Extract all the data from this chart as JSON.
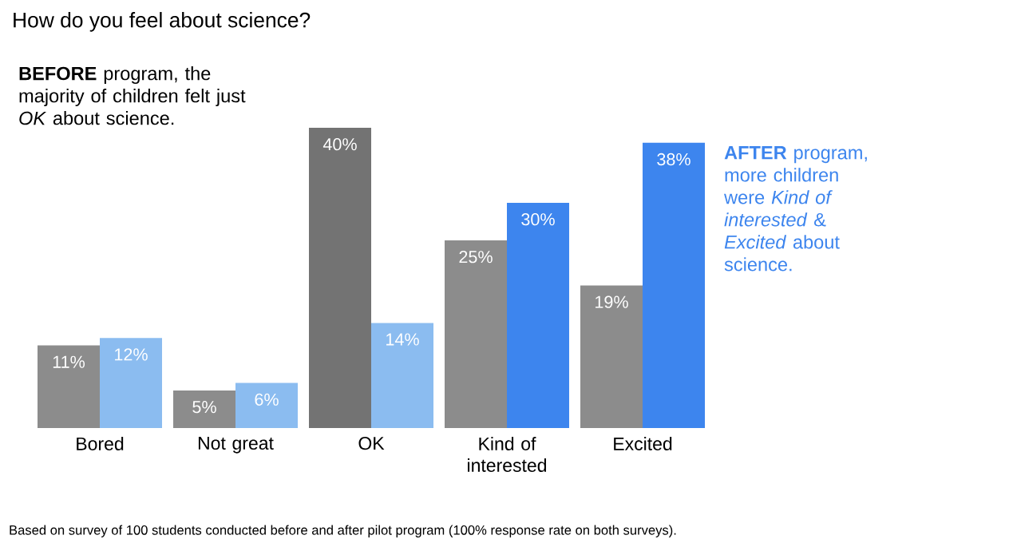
{
  "chart_data": {
    "type": "bar",
    "title": "How do you feel about science?",
    "categories": [
      "Bored",
      "Not great",
      "OK",
      "Kind of interested",
      "Excited"
    ],
    "ylim": [
      0,
      40
    ],
    "series": [
      {
        "colors": [
          "#8c8c8c",
          "#8c8c8c",
          "#737373",
          "#8c8c8c",
          "#8c8c8c"
        ],
        "values": [
          11,
          5,
          40,
          25,
          19
        ],
        "value_labels": [
          "11%",
          "5%",
          "40%",
          "25%",
          "19%"
        ]
      },
      {
        "colors": [
          "#8bbcf0",
          "#8bbcf0",
          "#8bbcf0",
          "#3d85ee",
          "#3d85ee"
        ],
        "values": [
          12,
          6,
          14,
          30,
          38
        ],
        "value_labels": [
          "12%",
          "6%",
          "14%",
          "30%",
          "38%"
        ]
      }
    ],
    "annotations": [
      "**BEFORE** program, the majority of children felt just *OK* about science.",
      "**AFTER** program, more children were *Kind of interested* & *Excited* about science.",
      "Based on survey of 100 students conducted before and after pilot program (100% response rate on both surveys)."
    ]
  }
}
